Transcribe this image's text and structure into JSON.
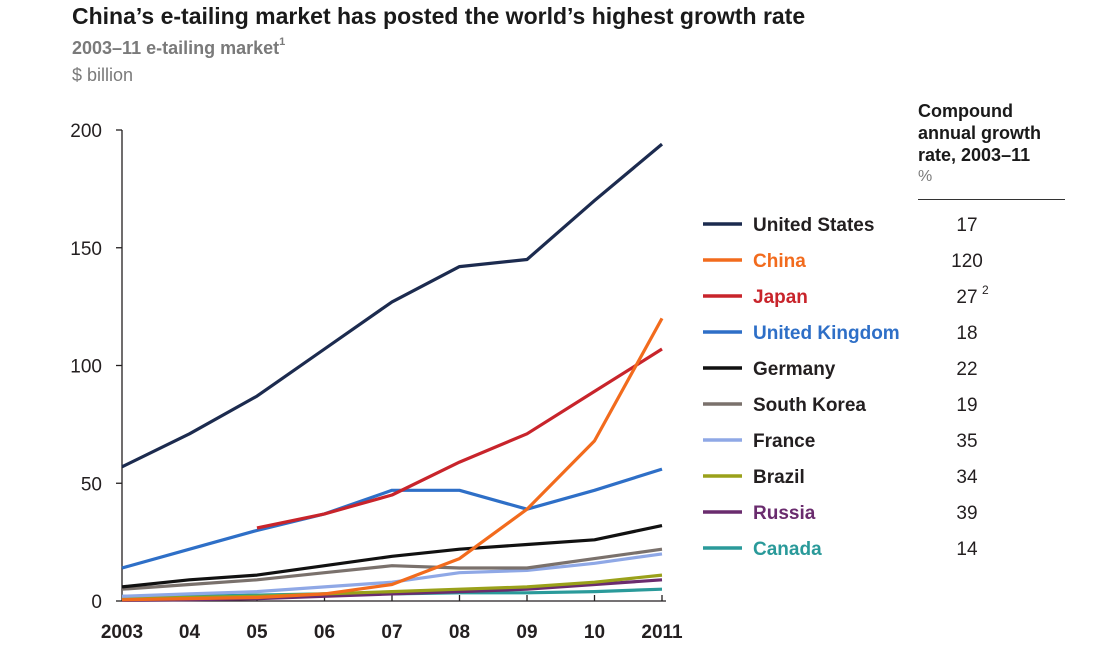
{
  "chart_data": {
    "type": "line",
    "title": "China’s e-tailing market has posted the world’s highest growth rate",
    "subtitle": "2003–11 e-tailing market",
    "subtitle_footnote": "1",
    "unit_label": "$ billion",
    "x": [
      "2003",
      "04",
      "05",
      "06",
      "07",
      "08",
      "09",
      "10",
      "2011"
    ],
    "ylim": [
      0,
      200
    ],
    "yticks": [
      "0",
      "50",
      "100",
      "150",
      "200"
    ],
    "grid": false,
    "legend_placement": "right",
    "cagr_header_lines": [
      "Compound",
      "annual growth",
      "rate, 2003–11"
    ],
    "cagr_unit": "%",
    "series": [
      {
        "name": "United States",
        "color": "#1c2b4f",
        "cagr": "17",
        "cagr_footnote": "",
        "values": [
          57,
          71,
          87,
          107,
          127,
          142,
          145,
          170,
          194
        ]
      },
      {
        "name": "China",
        "color": "#f26b1d",
        "cagr": "120",
        "cagr_footnote": "",
        "values": [
          0.5,
          1,
          1.5,
          3,
          7,
          18,
          39,
          68,
          120
        ]
      },
      {
        "name": "Japan",
        "color": "#c8242b",
        "cagr": "27",
        "cagr_footnote": "2",
        "values": [
          null,
          null,
          31,
          37,
          45,
          59,
          71,
          89,
          107
        ]
      },
      {
        "name": "United Kingdom",
        "color": "#2e6fc7",
        "cagr": "18",
        "cagr_footnote": "",
        "values": [
          14,
          22,
          30,
          37,
          47,
          47,
          39,
          47,
          56
        ]
      },
      {
        "name": "Germany",
        "color": "#111111",
        "cagr": "22",
        "cagr_footnote": "",
        "values": [
          6,
          9,
          11,
          15,
          19,
          22,
          24,
          26,
          32
        ]
      },
      {
        "name": "South Korea",
        "color": "#7a716c",
        "cagr": "19",
        "cagr_footnote": "",
        "values": [
          5,
          7,
          9,
          12,
          15,
          14,
          14,
          18,
          22
        ]
      },
      {
        "name": "France",
        "color": "#8fa8e6",
        "cagr": "35",
        "cagr_footnote": "",
        "values": [
          2,
          3,
          4,
          6,
          8,
          12,
          13,
          16,
          20
        ]
      },
      {
        "name": "Brazil",
        "color": "#9aa11a",
        "cagr": "34",
        "cagr_footnote": "",
        "values": [
          1,
          1.5,
          2,
          3,
          4,
          5,
          6,
          8,
          11
        ]
      },
      {
        "name": "Russia",
        "color": "#6a2c6e",
        "cagr": "39",
        "cagr_footnote": "",
        "values": [
          0.3,
          0.5,
          1,
          2,
          3,
          4,
          5,
          7,
          9
        ]
      },
      {
        "name": "Canada",
        "color": "#2a9a9a",
        "cagr": "14",
        "cagr_footnote": "",
        "values": [
          2,
          2,
          2.5,
          3,
          3,
          3.5,
          3.5,
          4,
          5
        ]
      }
    ]
  }
}
